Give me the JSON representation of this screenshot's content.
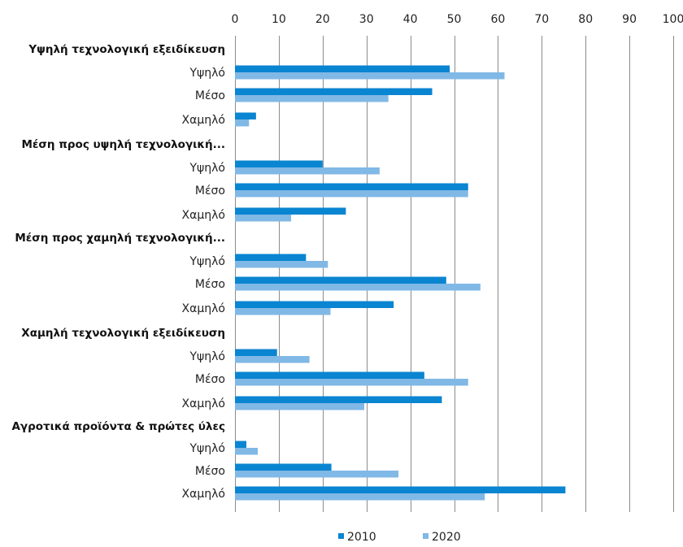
{
  "chart_data": {
    "type": "bar",
    "orientation": "horizontal",
    "xlim": [
      0,
      100
    ],
    "x_ticks": [
      "0",
      "10",
      "20",
      "30",
      "40",
      "50",
      "60",
      "70",
      "80",
      "90",
      "100"
    ],
    "grid": true,
    "legend_position": "bottom",
    "colors": {
      "2010": "#0a85d1",
      "2020": "#80b8e6"
    },
    "series_names": [
      "2010",
      "2020"
    ],
    "groups": [
      {
        "label": "Υψηλή τεχνολογική εξειδίκευση",
        "rows": [
          {
            "label": "Υψηλό",
            "values": [
              49,
              61.5
            ]
          },
          {
            "label": "Μέσο",
            "values": [
              45,
              35
            ]
          },
          {
            "label": "Χαμηλό",
            "values": [
              4.8,
              3.2
            ]
          }
        ]
      },
      {
        "label": "Μέση προς υψηλή τεχνολογική...",
        "rows": [
          {
            "label": "Υψηλό",
            "values": [
              20,
              33
            ]
          },
          {
            "label": "Μέσο",
            "values": [
              53.2,
              53.2
            ]
          },
          {
            "label": "Χαμηλό",
            "values": [
              25.3,
              12.8
            ]
          }
        ]
      },
      {
        "label": "Μέση προς χαμηλή τεχνολογική...",
        "rows": [
          {
            "label": "Υψηλό",
            "values": [
              16.2,
              21.2
            ]
          },
          {
            "label": "Μέσο",
            "values": [
              48.2,
              56
            ]
          },
          {
            "label": "Χαμηλό",
            "values": [
              36.2,
              21.8
            ]
          }
        ]
      },
      {
        "label": "Χαμηλή τεχνολογική εξειδίκευση",
        "rows": [
          {
            "label": "Υψηλό",
            "values": [
              9.6,
              17
            ]
          },
          {
            "label": "Μέσο",
            "values": [
              43.2,
              53.2
            ]
          },
          {
            "label": "Χαμηλό",
            "values": [
              47.2,
              29.5
            ]
          }
        ]
      },
      {
        "label": "Αγροτικά προϊόντα & πρώτες ύλες",
        "rows": [
          {
            "label": "Υψηλό",
            "values": [
              2.6,
              5.2
            ]
          },
          {
            "label": "Μέσο",
            "values": [
              22,
              37.3
            ]
          },
          {
            "label": "Χαμηλό",
            "values": [
              75.4,
              57
            ]
          }
        ]
      }
    ]
  }
}
